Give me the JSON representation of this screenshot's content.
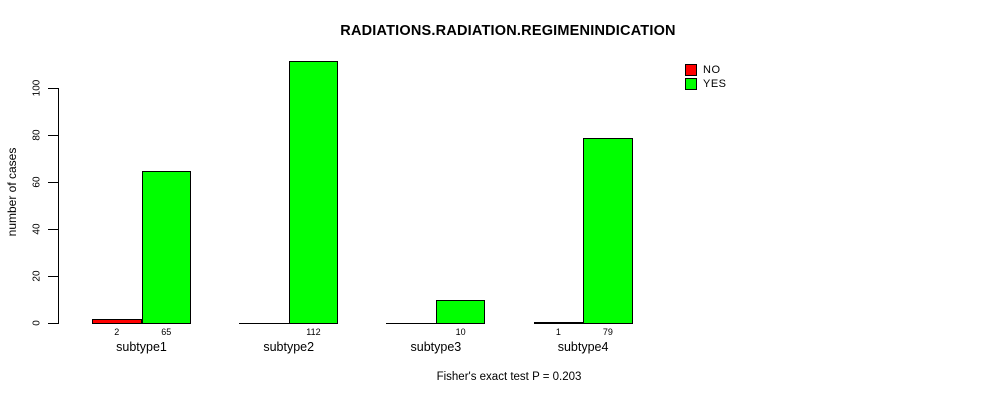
{
  "chart_data": {
    "type": "bar",
    "title": "RADIATIONS.RADIATION.REGIMENINDICATION",
    "subtitle": "Fisher's exact test P = 0.203",
    "ylabel": "number of cases",
    "xlabel": "",
    "categories": [
      "subtype1",
      "subtype2",
      "subtype3",
      "subtype4"
    ],
    "series": [
      {
        "name": "NO",
        "color": "#ff0000",
        "values": [
          2,
          0,
          0,
          1
        ]
      },
      {
        "name": "YES",
        "color": "#00ff00",
        "values": [
          65,
          112,
          10,
          79
        ]
      }
    ],
    "bar_value_labels_shown": true,
    "yticks": [
      0,
      20,
      40,
      60,
      80,
      100
    ],
    "ylim": [
      0,
      112
    ],
    "grid": false,
    "legend_position": "top-right",
    "background_color": "#ffffff",
    "axis_color": "#000000"
  }
}
